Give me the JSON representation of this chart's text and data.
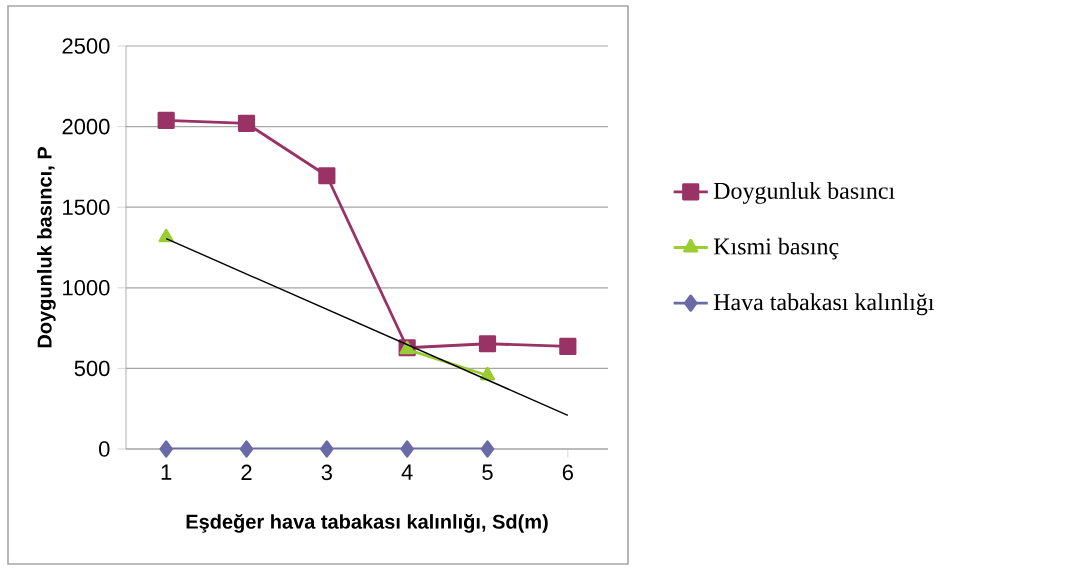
{
  "chart_data": {
    "type": "line",
    "xlabel": "Eşdeğer hava tabakası kalınlığı, Sd(m)",
    "ylabel": "Doygunluk basıncı, P",
    "x": [
      1,
      2,
      3,
      4,
      5,
      6
    ],
    "xlim": [
      0.5,
      6.5
    ],
    "xticks": [
      1,
      2,
      3,
      4,
      5,
      6
    ],
    "ylim": [
      0,
      2500
    ],
    "yticks": [
      0,
      500,
      1000,
      1500,
      2000,
      2500
    ],
    "grid": "y",
    "legend": "right",
    "series": [
      {
        "name": "Doygunluk basıncı",
        "color": "#993366",
        "marker": "square",
        "values": [
          2039,
          2020,
          1695,
          628,
          653,
          636
        ]
      },
      {
        "name": "Kısmi basınç",
        "color": "#9acd32",
        "marker": "triangle",
        "values": [
          1313,
          null,
          null,
          618,
          456,
          null
        ]
      },
      {
        "name": "Hava tabakası kalınlığı",
        "color": "#6a6aa8",
        "marker": "diamond",
        "values": [
          0,
          0,
          0,
          0,
          0,
          null
        ]
      },
      {
        "type": "line",
        "color": "#000000",
        "marker": "none",
        "x": [
          1,
          6
        ],
        "values": [
          1305,
          209
        ]
      }
    ]
  }
}
